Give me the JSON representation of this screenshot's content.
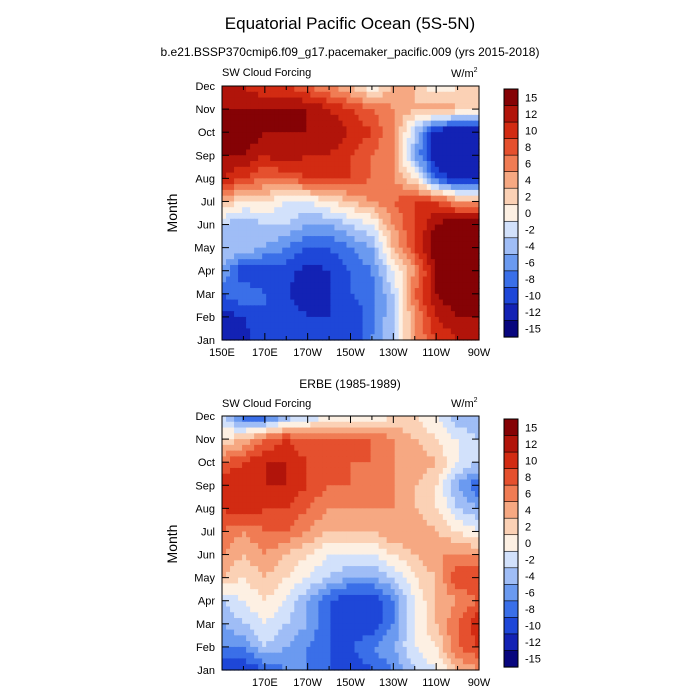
{
  "title": "Equatorial Pacific Ocean (5S-5N)",
  "colors": [
    "#08067e",
    "#1322b4",
    "#1e47d8",
    "#3a6fe8",
    "#6b9af0",
    "#9fbdf6",
    "#d2e1fb",
    "#fdf0e3",
    "#fbd1b5",
    "#f6a882",
    "#f07c54",
    "#e5502e",
    "#d22b12",
    "#b1140a",
    "#850205"
  ],
  "colorbar_labels": [
    "15",
    "12",
    "10",
    "8",
    "6",
    "4",
    "2",
    "0",
    "-2",
    "-4",
    "-6",
    "-8",
    "-10",
    "-12",
    "-15"
  ],
  "chart_data": [
    {
      "type": "heatmap",
      "title": "b.e21.BSSP370cmip6.f09_g17.pacemaker_pacific.009 (yrs 2015-2018)",
      "left_label": "SW Cloud Forcing",
      "units": "W/m",
      "units_sup": "2",
      "ylabel": "Month",
      "months": [
        "Jan",
        "Feb",
        "Mar",
        "Apr",
        "May",
        "Jun",
        "Jul",
        "Aug",
        "Sep",
        "Oct",
        "Nov",
        "Dec"
      ],
      "xtick_labels": [
        "150E",
        "170E",
        "170W",
        "150W",
        "130W",
        "110W",
        "90W"
      ],
      "xlim_degE": [
        150,
        270
      ],
      "levels": [
        -15,
        -12,
        -10,
        -8,
        -6,
        -4,
        -2,
        0,
        2,
        4,
        6,
        8,
        10,
        12,
        15
      ],
      "lons_degE": [
        150,
        160,
        170,
        180,
        190,
        200,
        210,
        220,
        230,
        240,
        250,
        260,
        270
      ],
      "values": [
        [
          -14,
          -13,
          -10,
          -10,
          -10,
          -10,
          -12,
          -8,
          -4,
          4,
          8,
          10,
          10
        ],
        [
          -13,
          -12,
          -10,
          -11,
          -12,
          -12,
          -12,
          -9,
          -4,
          4,
          10,
          12,
          12
        ],
        [
          -10,
          -8,
          -10,
          -12,
          -13,
          -12,
          -10,
          -9,
          -4,
          6,
          12,
          14,
          14
        ],
        [
          -6,
          -12,
          -12,
          -11,
          -13,
          -12,
          -10,
          -8,
          -2,
          4,
          12,
          15,
          15
        ],
        [
          -4,
          -4,
          -6,
          -8,
          -10,
          -10,
          -8,
          -6,
          2,
          8,
          14,
          15,
          15
        ],
        [
          -4,
          -6,
          -4,
          -4,
          -6,
          -6,
          -4,
          -2,
          4,
          8,
          12,
          14,
          14
        ],
        [
          2,
          0,
          0,
          -2,
          -2,
          0,
          2,
          4,
          6,
          8,
          8,
          4,
          4
        ],
        [
          10,
          8,
          6,
          6,
          8,
          8,
          8,
          6,
          4,
          0,
          -10,
          -14,
          -14
        ],
        [
          12,
          12,
          10,
          12,
          10,
          10,
          8,
          6,
          4,
          -6,
          -14,
          -15,
          -15
        ],
        [
          15,
          14,
          12,
          12,
          12,
          12,
          10,
          8,
          4,
          -4,
          -14,
          -15,
          -15
        ],
        [
          12,
          12,
          12,
          12,
          12,
          10,
          8,
          6,
          4,
          2,
          4,
          2,
          2
        ],
        [
          10,
          10,
          8,
          8,
          6,
          4,
          2,
          -2,
          2,
          2,
          -2,
          0,
          0
        ]
      ]
    },
    {
      "type": "heatmap",
      "title": "ERBE (1985-1989)",
      "left_label": "SW Cloud Forcing",
      "units": "W/m",
      "units_sup": "2",
      "ylabel": "Month",
      "months": [
        "Jan",
        "Feb",
        "Mar",
        "Apr",
        "May",
        "Jun",
        "Jul",
        "Aug",
        "Sep",
        "Oct",
        "Nov",
        "Dec"
      ],
      "xtick_labels": [
        "170E",
        "170W",
        "150W",
        "130W",
        "110W",
        "90W"
      ],
      "xlim_degE": [
        150,
        270
      ],
      "levels": [
        -15,
        -12,
        -10,
        -8,
        -6,
        -4,
        -2,
        0,
        2,
        4,
        6,
        8,
        10,
        12,
        15
      ],
      "lons_degE": [
        150,
        160,
        170,
        180,
        190,
        200,
        210,
        220,
        230,
        240,
        250,
        260,
        270
      ],
      "values": [
        [
          -12,
          -12,
          -10,
          -8,
          -8,
          -10,
          -12,
          -10,
          -8,
          -4,
          -2,
          2,
          4
        ],
        [
          -8,
          -8,
          -4,
          -6,
          -8,
          -10,
          -10,
          -8,
          -6,
          -2,
          0,
          6,
          8
        ],
        [
          -6,
          -4,
          -2,
          -4,
          -6,
          -10,
          -12,
          -12,
          -8,
          -2,
          2,
          6,
          10
        ],
        [
          -4,
          -2,
          0,
          -2,
          -6,
          -10,
          -12,
          -12,
          -8,
          -2,
          2,
          4,
          6
        ],
        [
          2,
          0,
          2,
          0,
          -2,
          -4,
          -6,
          -6,
          -4,
          0,
          2,
          8,
          8
        ],
        [
          4,
          2,
          4,
          2,
          0,
          -2,
          -2,
          -2,
          0,
          2,
          4,
          4,
          4
        ],
        [
          6,
          4,
          6,
          6,
          4,
          2,
          2,
          2,
          4,
          4,
          2,
          0,
          -2
        ],
        [
          8,
          10,
          8,
          8,
          6,
          4,
          4,
          4,
          4,
          2,
          0,
          -4,
          -6
        ],
        [
          10,
          10,
          10,
          10,
          8,
          6,
          6,
          4,
          4,
          2,
          0,
          -6,
          -10
        ],
        [
          6,
          8,
          10,
          10,
          8,
          8,
          6,
          6,
          4,
          4,
          2,
          -2,
          -4
        ],
        [
          0,
          2,
          6,
          8,
          6,
          6,
          6,
          6,
          4,
          2,
          0,
          -2,
          -4
        ],
        [
          -4,
          -10,
          -10,
          -6,
          -4,
          -2,
          -2,
          -2,
          0,
          0,
          -2,
          -6,
          -6
        ]
      ]
    }
  ]
}
